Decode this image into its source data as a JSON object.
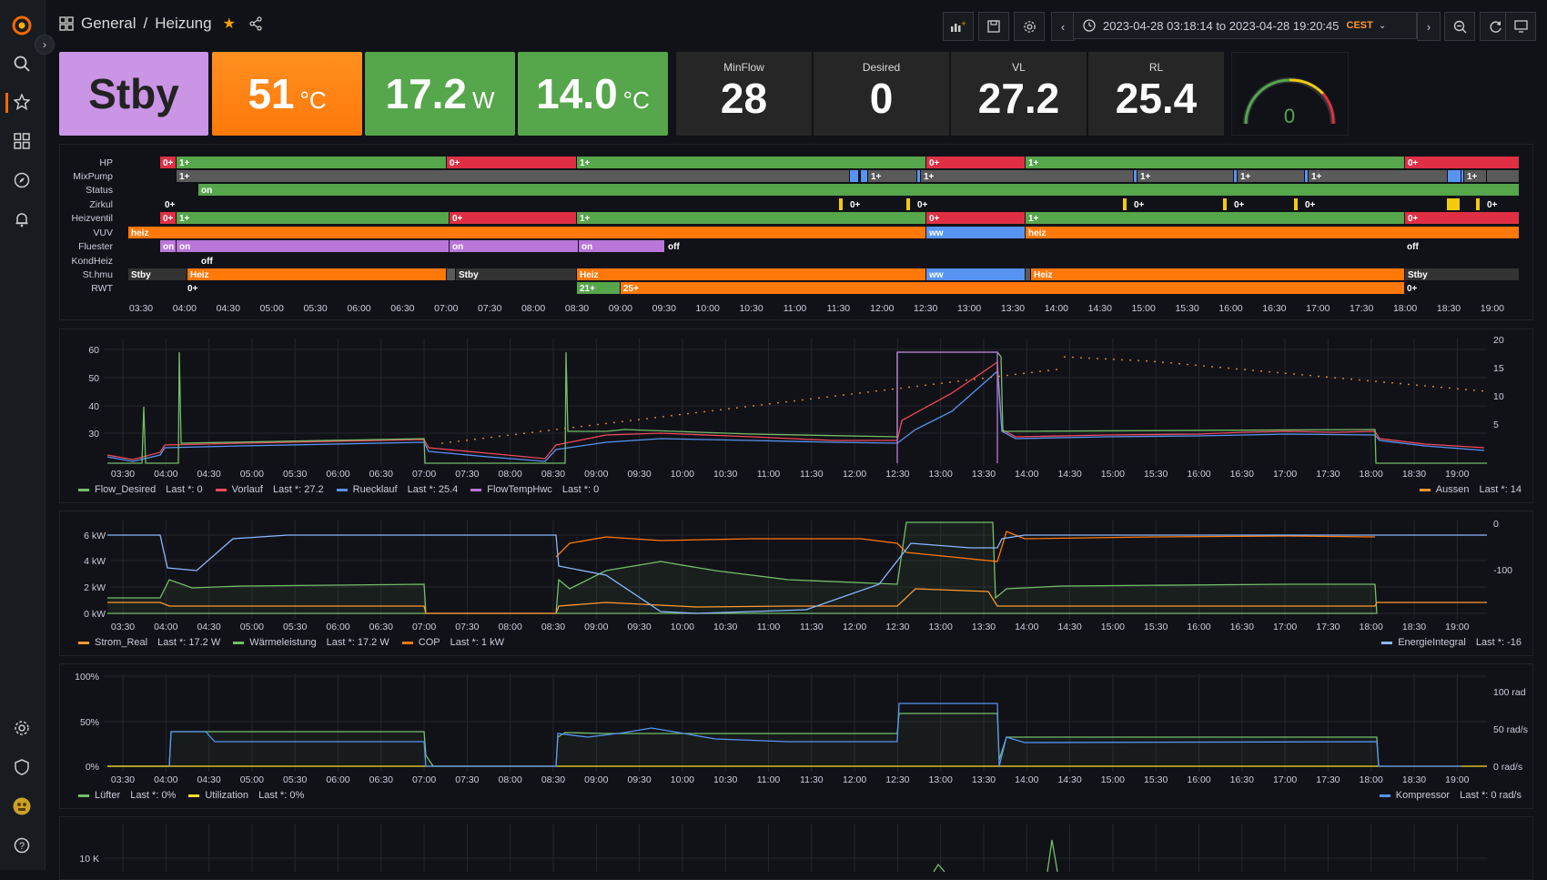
{
  "breadcrumb": {
    "folder": "General",
    "sep": "/",
    "dashboard": "Heizung"
  },
  "timerange": {
    "text": "2023-04-28 03:18:14 to 2023-04-28 19:20:45",
    "tz": "CEST"
  },
  "stats": {
    "s1": {
      "value": "Stby"
    },
    "s2": {
      "value": "51",
      "unit": "°C"
    },
    "s3": {
      "value": "17.2",
      "unit": "W"
    },
    "s4": {
      "value": "14.0",
      "unit": "°C"
    },
    "s5": {
      "label": "MinFlow",
      "value": "28"
    },
    "s6": {
      "label": "Desired",
      "value": "0"
    },
    "s7": {
      "label": "VL",
      "value": "27.2"
    },
    "s8": {
      "label": "RL",
      "value": "25.4"
    },
    "gauge": {
      "value": "0"
    }
  },
  "time_ticks": [
    "03:30",
    "04:00",
    "04:30",
    "05:00",
    "05:30",
    "06:00",
    "06:30",
    "07:00",
    "07:30",
    "08:00",
    "08:30",
    "09:00",
    "09:30",
    "10:00",
    "10:30",
    "11:00",
    "11:30",
    "12:00",
    "12:30",
    "13:00",
    "13:30",
    "14:00",
    "14:30",
    "15:00",
    "15:30",
    "16:00",
    "16:30",
    "17:00",
    "17:30",
    "18:00",
    "18:30",
    "19:00"
  ],
  "timeline": {
    "rows": [
      "HP",
      "MixPump",
      "Status",
      "Zirkul",
      "Heizventil",
      "VUV",
      "Fluester",
      "KondHeiz",
      "St.hmu",
      "RWT"
    ],
    "labels": {
      "hp": [
        "0+",
        "1+",
        "0+",
        "1+",
        "0+",
        "1+",
        "0+"
      ],
      "mix": [
        "1+",
        "1+",
        "1+",
        "1+",
        "1+",
        "1+",
        "1+"
      ],
      "status": [
        "on"
      ],
      "zirkul": [
        "0+",
        "0+",
        "0+",
        "0+",
        "0+",
        "0+",
        "0+"
      ],
      "heiz": [
        "0+",
        "1+",
        "0+",
        "1+",
        "0+",
        "1+",
        "0+"
      ],
      "vuv": [
        "heiz",
        "ww",
        "heiz"
      ],
      "fluester": [
        "on",
        "on",
        "on",
        "on",
        "off",
        "off"
      ],
      "kond": [
        "off"
      ],
      "sthmu": [
        "Stby",
        "Heiz",
        "Stby",
        "Heiz",
        "ww",
        "Heiz",
        "Stby"
      ],
      "rwt": [
        "0+",
        "21+",
        "25+",
        "0+"
      ]
    }
  },
  "chart1": {
    "y_left": [
      "60",
      "50",
      "40",
      "30"
    ],
    "y_right": [
      "20",
      "15",
      "10",
      "5"
    ],
    "legend_left": [
      {
        "name": "Flow_Desired",
        "last": "Last *: 0",
        "color": "#73bf69"
      },
      {
        "name": "Vorlauf",
        "last": "Last *: 27.2",
        "color": "#f2495c"
      },
      {
        "name": "Ruecklauf",
        "last": "Last *: 25.4",
        "color": "#5794f2"
      },
      {
        "name": "FlowTempHwc",
        "last": "Last *: 0",
        "color": "#b877d9"
      }
    ],
    "legend_right": [
      {
        "name": "Aussen",
        "last": "Last *: 14",
        "color": "#ff9830"
      }
    ]
  },
  "chart2": {
    "y_left": [
      "6 kW",
      "4 kW",
      "2 kW",
      "0 kW"
    ],
    "y_right": [
      "0",
      "-100"
    ],
    "legend_left": [
      {
        "name": "Strom_Real",
        "last": "Last *: 17.2 W",
        "color": "#ff9830"
      },
      {
        "name": "Wärmeleistung",
        "last": "Last *: 17.2 W",
        "color": "#73bf69"
      },
      {
        "name": "COP",
        "last": "Last *: 1 kW",
        "color": "#ff780a"
      }
    ],
    "legend_right": [
      {
        "name": "EnergieIntegral",
        "last": "Last *: -16",
        "color": "#8ab8ff"
      }
    ]
  },
  "chart3": {
    "y_left": [
      "100%",
      "50%",
      "0%"
    ],
    "y_right": [
      "100 rad",
      "50 rad/s",
      "0 rad/s"
    ],
    "legend_left": [
      {
        "name": "Lüfter",
        "last": "Last *: 0%",
        "color": "#73bf69"
      },
      {
        "name": "Utilization",
        "last": "Last *: 0%",
        "color": "#fade2a"
      }
    ],
    "legend_right": [
      {
        "name": "Kompressor",
        "last": "Last *: 0 rad/s",
        "color": "#5794f2"
      }
    ]
  },
  "chart4": {
    "y_left": [
      "10 K"
    ]
  },
  "colors": {
    "green": "#56a64b",
    "red": "#e02f44",
    "orange": "#ff780a",
    "blue": "#5794f2",
    "purple": "#b877d9",
    "grey": "#5a5a5a",
    "yellow": "#f2cc0c"
  }
}
